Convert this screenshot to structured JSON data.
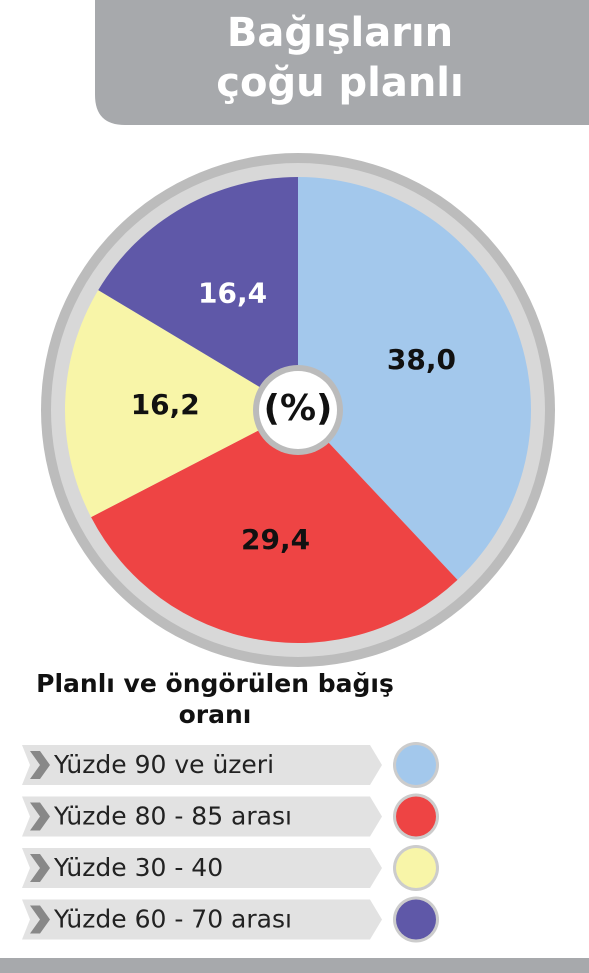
{
  "chart_data": {
    "type": "pie",
    "title": "Bağışların çoğu planlı",
    "center_label": "(%)",
    "legend_title": "Planlı ve öngörülen bağış oranı",
    "categories": [
      "Yüzde 90 ve üzeri",
      "Yüzde 80 - 85 arası",
      "Yüzde 30 - 40",
      "Yüzde 60 - 70 arası"
    ],
    "values": [
      38.0,
      29.4,
      16.2,
      16.4
    ],
    "value_labels": [
      "38,0",
      "29,4",
      "16,2",
      "16,4"
    ],
    "colors": [
      "#a3c8ec",
      "#ee4444",
      "#f8f5a8",
      "#5f58a8"
    ]
  }
}
